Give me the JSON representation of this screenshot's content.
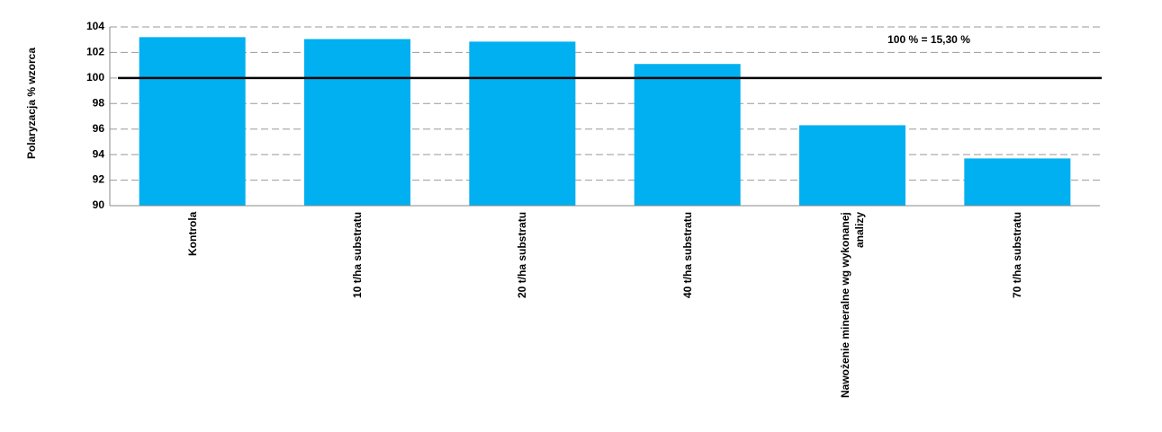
{
  "chart_data": {
    "type": "bar",
    "y_label": "Polaryzacja % wzorca",
    "annotation": "100 % =  15,30 %",
    "categories": [
      "Kontrola",
      "10 t/ha substratu",
      "20 t/ha substratu",
      "40 t/ha substratu",
      "Nawożenie mineralne wg wykonanej analizy",
      "70 t/ha substratu"
    ],
    "values": [
      103.2,
      103.05,
      102.85,
      101.1,
      96.3,
      93.7
    ],
    "color": "#00b0f0",
    "reference_line": 100,
    "ylim": [
      90,
      104
    ],
    "yticks": [
      90,
      92,
      94,
      96,
      98,
      100,
      102,
      104
    ],
    "grid": true
  }
}
